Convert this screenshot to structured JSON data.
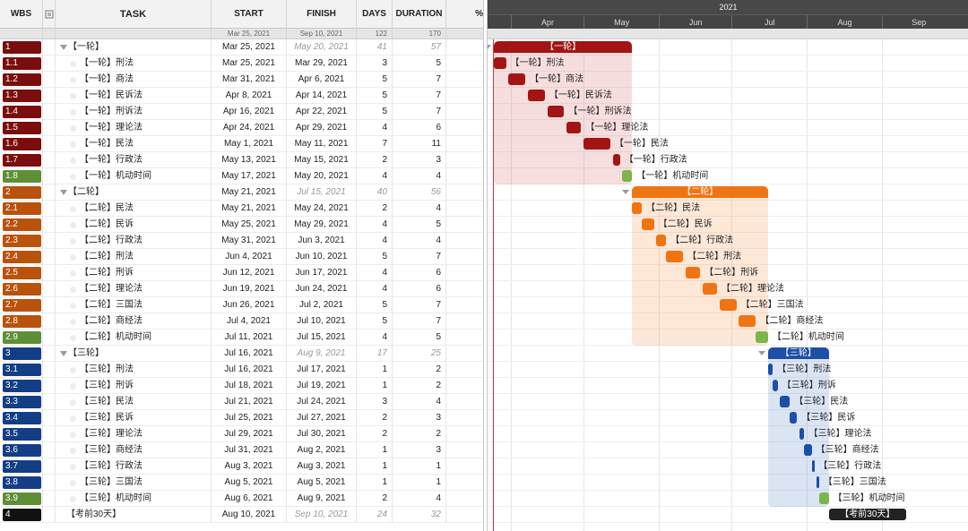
{
  "columns": {
    "wbs": "WBS",
    "task": "TASK",
    "start": "START",
    "finish": "FINISH",
    "days": "DAYS",
    "duration": "DURATION",
    "pct": "%"
  },
  "summary": {
    "start": "Mar 25, 2021",
    "finish": "Sep 10, 2021",
    "days": "122",
    "duration": "170"
  },
  "gantt": {
    "year": "2021",
    "months": [
      "Apr",
      "May",
      "Jun",
      "Jul",
      "Aug",
      "Sep"
    ]
  },
  "colors": {
    "p1": "#a31515",
    "p2": "#f07412",
    "p3": "#1b4fa8",
    "flex": "#7ab648",
    "final": "#222222",
    "today": "#d43a3a"
  },
  "rows": [
    {
      "wbs": "1",
      "task": "【一轮】",
      "start": "Mar 25, 2021",
      "finish": "May 20, 2021",
      "days": "41",
      "duration": "57",
      "level": 0,
      "phase": "p1",
      "wbsColor": "#7a0e0e"
    },
    {
      "wbs": "1.1",
      "task": "【一轮】刑法",
      "start": "Mar 25, 2021",
      "finish": "Mar 29, 2021",
      "days": "3",
      "duration": "5",
      "level": 1,
      "phase": "p1",
      "wbsColor": "#7a0e0e"
    },
    {
      "wbs": "1.2",
      "task": "【一轮】商法",
      "start": "Mar 31, 2021",
      "finish": "Apr 6, 2021",
      "days": "5",
      "duration": "7",
      "level": 1,
      "phase": "p1",
      "wbsColor": "#7a0e0e"
    },
    {
      "wbs": "1.3",
      "task": "【一轮】民诉法",
      "start": "Apr 8, 2021",
      "finish": "Apr 14, 2021",
      "days": "5",
      "duration": "7",
      "level": 1,
      "phase": "p1",
      "wbsColor": "#7a0e0e"
    },
    {
      "wbs": "1.4",
      "task": "【一轮】刑诉法",
      "start": "Apr 16, 2021",
      "finish": "Apr 22, 2021",
      "days": "5",
      "duration": "7",
      "level": 1,
      "phase": "p1",
      "wbsColor": "#7a0e0e"
    },
    {
      "wbs": "1.5",
      "task": "【一轮】理论法",
      "start": "Apr 24, 2021",
      "finish": "Apr 29, 2021",
      "days": "4",
      "duration": "6",
      "level": 1,
      "phase": "p1",
      "wbsColor": "#7a0e0e"
    },
    {
      "wbs": "1.6",
      "task": "【一轮】民法",
      "start": "May 1, 2021",
      "finish": "May 11, 2021",
      "days": "7",
      "duration": "11",
      "level": 1,
      "phase": "p1",
      "wbsColor": "#7a0e0e"
    },
    {
      "wbs": "1.7",
      "task": "【一轮】行政法",
      "start": "May 13, 2021",
      "finish": "May 15, 2021",
      "days": "2",
      "duration": "3",
      "level": 1,
      "phase": "p1",
      "wbsColor": "#7a0e0e"
    },
    {
      "wbs": "1.8",
      "task": "【一轮】机动时间",
      "start": "May 17, 2021",
      "finish": "May 20, 2021",
      "days": "4",
      "duration": "4",
      "level": 1,
      "phase": "flex",
      "wbsColor": "#5e8f35"
    },
    {
      "wbs": "2",
      "task": "【二轮】",
      "start": "May 21, 2021",
      "finish": "Jul 15, 2021",
      "days": "40",
      "duration": "56",
      "level": 0,
      "phase": "p2",
      "wbsColor": "#b8520c"
    },
    {
      "wbs": "2.1",
      "task": "【二轮】民法",
      "start": "May 21, 2021",
      "finish": "May 24, 2021",
      "days": "2",
      "duration": "4",
      "level": 1,
      "phase": "p2",
      "wbsColor": "#b8520c"
    },
    {
      "wbs": "2.2",
      "task": "【二轮】民诉",
      "start": "May 25, 2021",
      "finish": "May 29, 2021",
      "days": "4",
      "duration": "5",
      "level": 1,
      "phase": "p2",
      "wbsColor": "#b8520c"
    },
    {
      "wbs": "2.3",
      "task": "【二轮】行政法",
      "start": "May 31, 2021",
      "finish": "Jun 3, 2021",
      "days": "4",
      "duration": "4",
      "level": 1,
      "phase": "p2",
      "wbsColor": "#b8520c"
    },
    {
      "wbs": "2.4",
      "task": "【二轮】刑法",
      "start": "Jun 4, 2021",
      "finish": "Jun 10, 2021",
      "days": "5",
      "duration": "7",
      "level": 1,
      "phase": "p2",
      "wbsColor": "#b8520c"
    },
    {
      "wbs": "2.5",
      "task": "【二轮】刑诉",
      "start": "Jun 12, 2021",
      "finish": "Jun 17, 2021",
      "days": "4",
      "duration": "6",
      "level": 1,
      "phase": "p2",
      "wbsColor": "#b8520c"
    },
    {
      "wbs": "2.6",
      "task": "【二轮】理论法",
      "start": "Jun 19, 2021",
      "finish": "Jun 24, 2021",
      "days": "4",
      "duration": "6",
      "level": 1,
      "phase": "p2",
      "wbsColor": "#b8520c"
    },
    {
      "wbs": "2.7",
      "task": "【二轮】三国法",
      "start": "Jun 26, 2021",
      "finish": "Jul 2, 2021",
      "days": "5",
      "duration": "7",
      "level": 1,
      "phase": "p2",
      "wbsColor": "#b8520c"
    },
    {
      "wbs": "2.8",
      "task": "【二轮】商经法",
      "start": "Jul 4, 2021",
      "finish": "Jul 10, 2021",
      "days": "5",
      "duration": "7",
      "level": 1,
      "phase": "p2",
      "wbsColor": "#b8520c"
    },
    {
      "wbs": "2.9",
      "task": "【二轮】机动时间",
      "start": "Jul 11, 2021",
      "finish": "Jul 15, 2021",
      "days": "4",
      "duration": "5",
      "level": 1,
      "phase": "flex",
      "wbsColor": "#5e8f35"
    },
    {
      "wbs": "3",
      "task": "【三轮】",
      "start": "Jul 16, 2021",
      "finish": "Aug 9, 2021",
      "days": "17",
      "duration": "25",
      "level": 0,
      "phase": "p3",
      "wbsColor": "#133e86"
    },
    {
      "wbs": "3.1",
      "task": "【三轮】刑法",
      "start": "Jul 16, 2021",
      "finish": "Jul 17, 2021",
      "days": "1",
      "duration": "2",
      "level": 1,
      "phase": "p3",
      "wbsColor": "#133e86"
    },
    {
      "wbs": "3.2",
      "task": "【三轮】刑诉",
      "start": "Jul 18, 2021",
      "finish": "Jul 19, 2021",
      "days": "1",
      "duration": "2",
      "level": 1,
      "phase": "p3",
      "wbsColor": "#133e86"
    },
    {
      "wbs": "3.3",
      "task": "【三轮】民法",
      "start": "Jul 21, 2021",
      "finish": "Jul 24, 2021",
      "days": "3",
      "duration": "4",
      "level": 1,
      "phase": "p3",
      "wbsColor": "#133e86"
    },
    {
      "wbs": "3.4",
      "task": "【三轮】民诉",
      "start": "Jul 25, 2021",
      "finish": "Jul 27, 2021",
      "days": "2",
      "duration": "3",
      "level": 1,
      "phase": "p3",
      "wbsColor": "#133e86"
    },
    {
      "wbs": "3.5",
      "task": "【三轮】理论法",
      "start": "Jul 29, 2021",
      "finish": "Jul 30, 2021",
      "days": "2",
      "duration": "2",
      "level": 1,
      "phase": "p3",
      "wbsColor": "#133e86"
    },
    {
      "wbs": "3.6",
      "task": "【三轮】商经法",
      "start": "Jul 31, 2021",
      "finish": "Aug 2, 2021",
      "days": "1",
      "duration": "3",
      "level": 1,
      "phase": "p3",
      "wbsColor": "#133e86"
    },
    {
      "wbs": "3.7",
      "task": "【三轮】行政法",
      "start": "Aug 3, 2021",
      "finish": "Aug 3, 2021",
      "days": "1",
      "duration": "1",
      "level": 1,
      "phase": "p3",
      "wbsColor": "#133e86"
    },
    {
      "wbs": "3.8",
      "task": "【三轮】三国法",
      "start": "Aug 5, 2021",
      "finish": "Aug 5, 2021",
      "days": "1",
      "duration": "1",
      "level": 1,
      "phase": "p3",
      "wbsColor": "#133e86"
    },
    {
      "wbs": "3.9",
      "task": "【三轮】机动时间",
      "start": "Aug 6, 2021",
      "finish": "Aug 9, 2021",
      "days": "2",
      "duration": "4",
      "level": 1,
      "phase": "flex",
      "wbsColor": "#5e8f35"
    },
    {
      "wbs": "4",
      "task": "【考前30天】",
      "start": "Aug 10, 2021",
      "finish": "Sep 10, 2021",
      "days": "24",
      "duration": "32",
      "level": 0,
      "phase": "final",
      "wbsColor": "#111111"
    }
  ]
}
